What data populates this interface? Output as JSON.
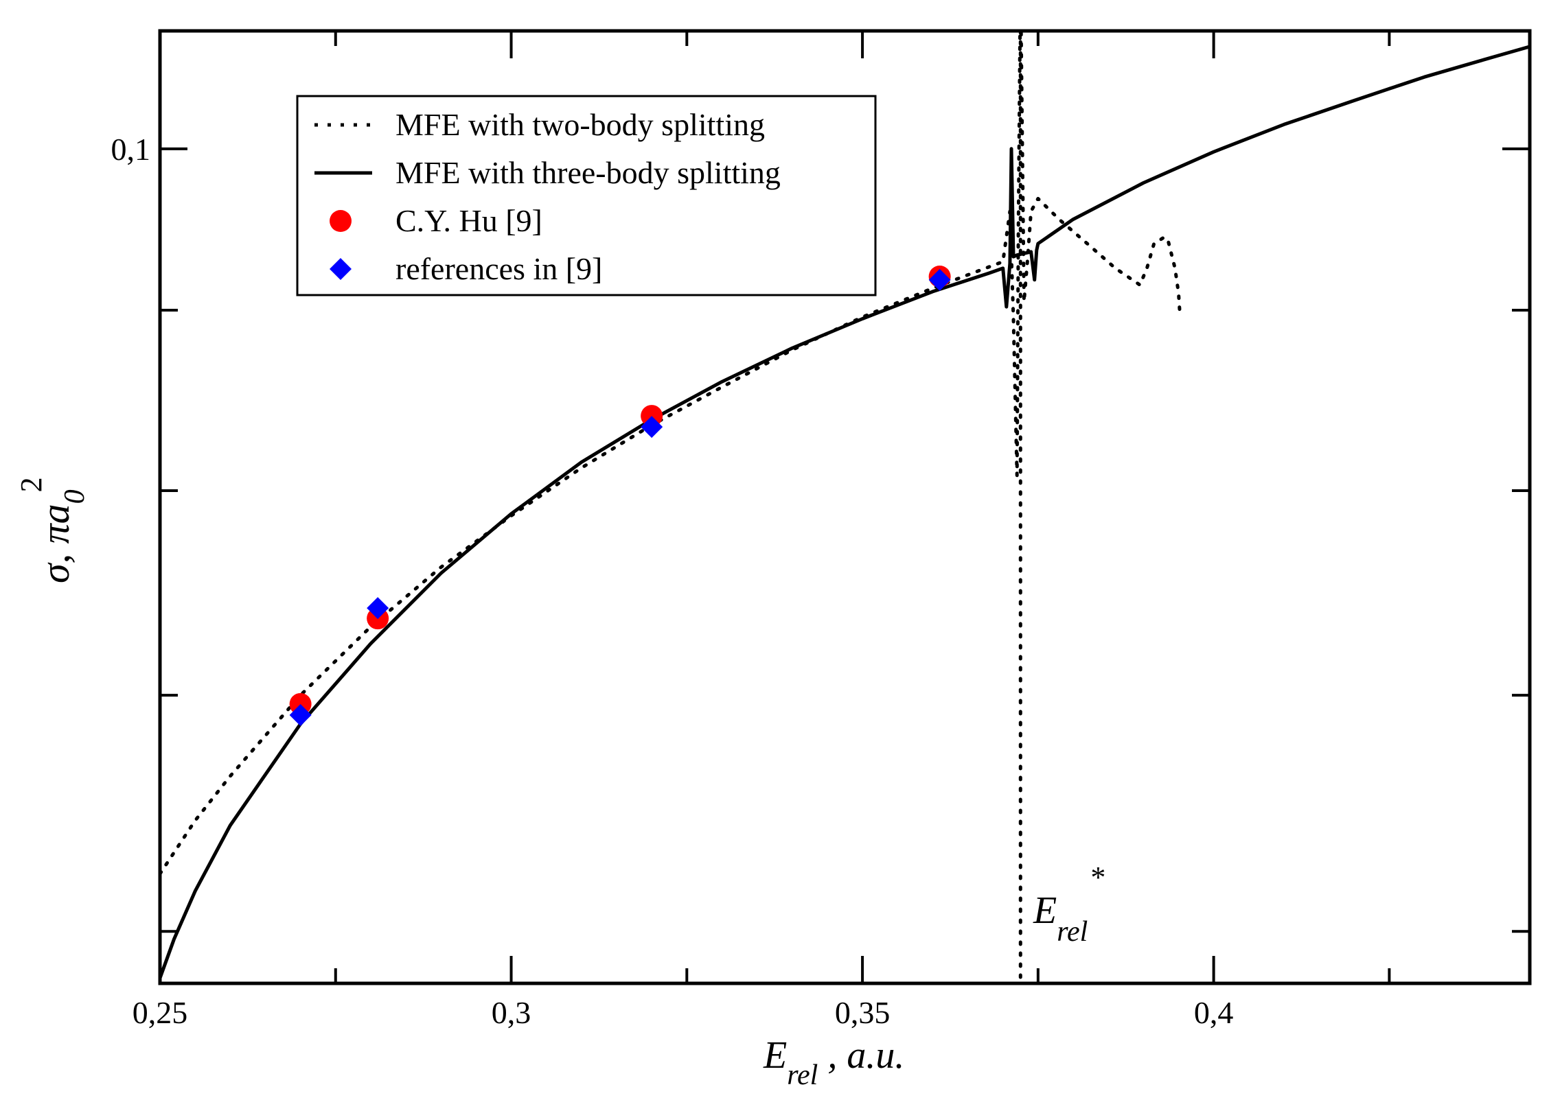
{
  "chart_data": {
    "type": "line",
    "xlabel": {
      "main": "E",
      "sub": "rel",
      "tail": " , a.u."
    },
    "ylabel": {
      "main": "σ, πa",
      "sub": "0",
      "sup": "2"
    },
    "xlim": [
      0.25,
      0.445
    ],
    "ylim_log": [
      0.058,
      0.108
    ],
    "y_scale": "log",
    "x_ticks": [
      {
        "value": 0.25,
        "label": "0,25"
      },
      {
        "value": 0.3,
        "label": "0,3"
      },
      {
        "value": 0.35,
        "label": "0,35"
      },
      {
        "value": 0.4,
        "label": "0,4"
      }
    ],
    "x_minor_ticks": [
      0.275,
      0.325,
      0.375,
      0.425
    ],
    "y_ticks": [
      {
        "value": 0.1,
        "label": "0,1"
      }
    ],
    "y_minor_ticks": [
      0.06,
      0.07,
      0.08,
      0.09
    ],
    "y_minor_ticks_fine": [
      0.0625,
      0.065,
      0.0675,
      0.0725,
      0.075,
      0.0775,
      0.0825,
      0.085,
      0.0875,
      0.0925,
      0.095,
      0.0975,
      0.1025,
      0.105
    ],
    "legend_position": "top-left",
    "annotation": {
      "main": "E",
      "sub": "rel",
      "sup": "*",
      "x": 0.3725
    },
    "series": [
      {
        "name": "MFE with two-body splitting",
        "style": "dotted",
        "color": "#000000",
        "x": [
          0.25,
          0.255,
          0.26,
          0.27,
          0.28,
          0.29,
          0.3,
          0.31,
          0.32,
          0.33,
          0.34,
          0.35,
          0.36,
          0.365,
          0.37,
          0.371,
          0.3715,
          0.372,
          0.3722,
          0.3725,
          0.373,
          0.3735,
          0.374,
          0.375,
          0.378,
          0.382,
          0.386,
          0.3895,
          0.3905,
          0.3915,
          0.393,
          0.3935,
          0.3945,
          0.395,
          0.3952
        ],
        "y": [
          0.0623,
          0.0645,
          0.0664,
          0.07,
          0.0732,
          0.0761,
          0.0787,
          0.0812,
          0.0835,
          0.0856,
          0.0877,
          0.0896,
          0.0913,
          0.0921,
          0.0929,
          0.096,
          0.0895,
          0.0808,
          0.095,
          0.112,
          0.0905,
          0.093,
          0.096,
          0.0968,
          0.0955,
          0.094,
          0.0925,
          0.0915,
          0.0925,
          0.094,
          0.0944,
          0.0942,
          0.0925,
          0.091,
          0.0897
        ]
      },
      {
        "name": "MFE with three-body splitting",
        "style": "solid",
        "color": "#000000",
        "x": [
          0.25,
          0.252,
          0.255,
          0.26,
          0.27,
          0.28,
          0.29,
          0.3,
          0.31,
          0.32,
          0.33,
          0.34,
          0.35,
          0.36,
          0.368,
          0.37,
          0.3705,
          0.371,
          0.3712,
          0.3715,
          0.372,
          0.374,
          0.3745,
          0.3748,
          0.375,
          0.38,
          0.39,
          0.4,
          0.41,
          0.42,
          0.425,
          0.43,
          0.435,
          0.44,
          0.445
        ],
        "y": [
          0.0582,
          0.0597,
          0.0616,
          0.0643,
          0.0687,
          0.0724,
          0.0758,
          0.0788,
          0.0815,
          0.0838,
          0.0859,
          0.0878,
          0.0895,
          0.0911,
          0.0922,
          0.0925,
          0.0902,
          0.0928,
          0.1,
          0.0932,
          0.0933,
          0.0935,
          0.0918,
          0.0936,
          0.094,
          0.0955,
          0.0978,
          0.0998,
          0.1016,
          0.1032,
          0.104,
          0.1048,
          0.1055,
          0.1062,
          0.1069
        ]
      },
      {
        "name": "C.Y. Hu [9]",
        "style": "circle",
        "color": "#ff0000",
        "x": [
          0.27,
          0.281,
          0.32,
          0.361
        ],
        "y": [
          0.0696,
          0.0736,
          0.084,
          0.092
        ]
      },
      {
        "name": "references in [9]",
        "style": "diamond",
        "color": "#0000ff",
        "x": [
          0.27,
          0.281,
          0.32,
          0.361
        ],
        "y": [
          0.0691,
          0.0741,
          0.0834,
          0.0918
        ]
      }
    ]
  }
}
